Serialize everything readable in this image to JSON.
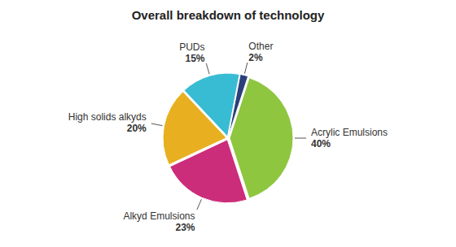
{
  "chart_data": {
    "type": "pie",
    "title": "Overall breakdown of technology",
    "categories": [
      "Acrylic Emulsions",
      "Alkyd Emulsions",
      "High solids alkyds",
      "PUDs",
      "Other"
    ],
    "values": [
      40,
      23,
      20,
      15,
      2
    ],
    "value_labels": [
      "40%",
      "23%",
      "20%",
      "15%",
      "2%"
    ],
    "colors": [
      "#8ec63f",
      "#cc2d7a",
      "#e8b020",
      "#38bcd4",
      "#2b3f7a"
    ],
    "data_labels": true
  }
}
